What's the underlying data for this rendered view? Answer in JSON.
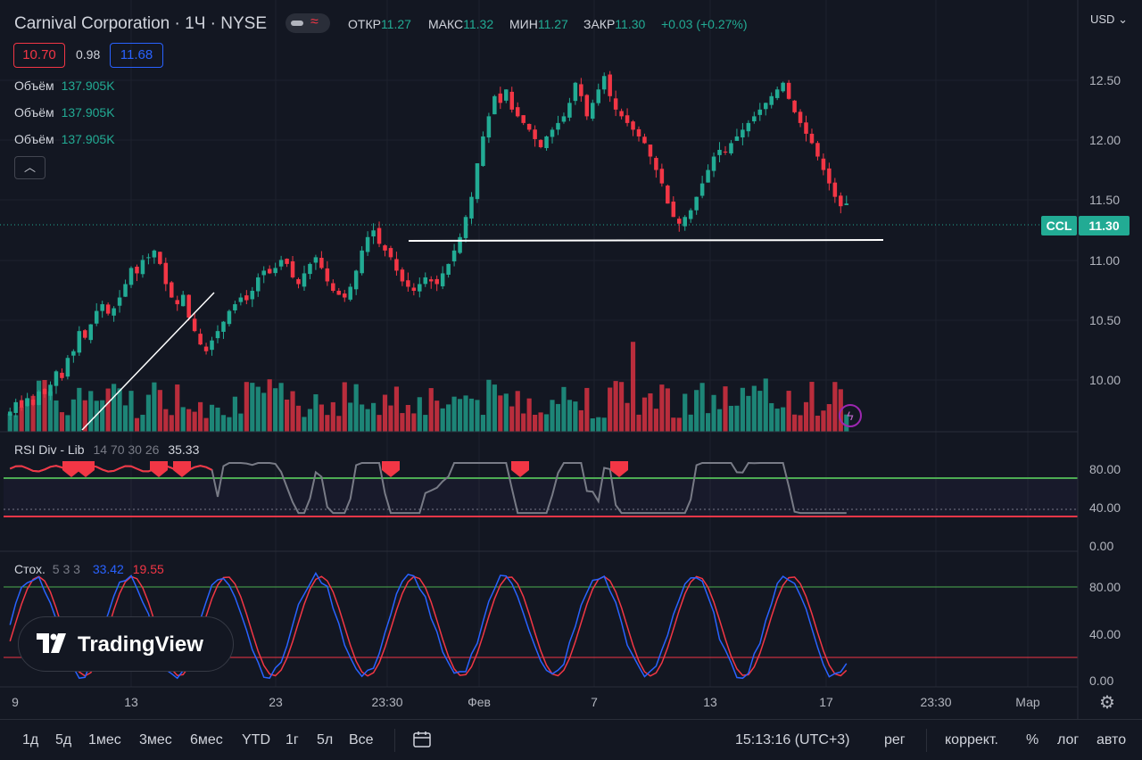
{
  "header": {
    "title": "Carnival Corporation · 1Ч · NYSE",
    "ohlc": [
      {
        "key": "ОТКР",
        "value": "11.27"
      },
      {
        "key": "МАКС",
        "value": "11.32"
      },
      {
        "key": "МИН",
        "value": "11.27"
      },
      {
        "key": "ЗАКР",
        "value": "11.30"
      }
    ],
    "change": "+0.03 (+0.27%)",
    "bid": "10.70",
    "spread": "0.98",
    "ask": "11.68",
    "collapse_icon": "chevron-up-icon"
  },
  "volume_legends": [
    {
      "label": "Объём",
      "value": "137.905K"
    },
    {
      "label": "Объём",
      "value": "137.905K"
    },
    {
      "label": "Объём",
      "value": "137.905K"
    }
  ],
  "currency": "USD",
  "price_axis": {
    "ticks": [
      "12.50",
      "12.00",
      "11.50",
      "11.00",
      "10.50",
      "10.00"
    ],
    "symbol_badge": "CCL",
    "last_price": "11.30"
  },
  "rsi": {
    "title": "RSI Div - Lib",
    "params": "14 70 30 26",
    "value": "35.33",
    "ticks": [
      "80.00",
      "40.00",
      "0.00"
    ]
  },
  "stoch": {
    "title": "Стох.",
    "params": "5 3 3",
    "k_value": "33.42",
    "d_value": "19.55",
    "ticks": [
      "80.00",
      "40.00",
      "0.00"
    ]
  },
  "time_axis": {
    "labels": [
      "9",
      "13",
      "23",
      "23:30",
      "Фев",
      "7",
      "13",
      "17",
      "23:30",
      "Мар"
    ]
  },
  "bottom_bar": {
    "periods": [
      "1д",
      "5д",
      "1мес",
      "3мес",
      "6мес",
      "YTD",
      "1г",
      "5л",
      "Все"
    ],
    "compare_icon": "calendar-range-icon",
    "clock": "15:13:16 (UTC+3)",
    "session": "рег",
    "adjust": "коррект.",
    "percent": "%",
    "log": "лог",
    "auto": "авто"
  },
  "logo": {
    "text": "TradingView"
  },
  "colors": {
    "up": "#22ab94",
    "down": "#f23645",
    "background": "#131722",
    "rsi_line": "#787b86",
    "stoch_k": "#2962ff",
    "stoch_d": "#f23645"
  },
  "chart_data": {
    "type": "candlestick",
    "symbol": "CCL",
    "price_range": [
      9.6,
      12.75
    ],
    "closes": [
      9.75,
      9.82,
      9.78,
      9.85,
      9.8,
      9.9,
      9.88,
      9.95,
      10.05,
      10.0,
      10.15,
      10.2,
      10.35,
      10.3,
      10.4,
      10.5,
      10.55,
      10.48,
      10.52,
      10.6,
      10.7,
      10.82,
      10.78,
      10.88,
      10.9,
      10.95,
      10.85,
      10.7,
      10.6,
      10.55,
      10.62,
      10.45,
      10.35,
      10.25,
      10.2,
      10.28,
      10.35,
      10.42,
      10.5,
      10.55,
      10.6,
      10.58,
      10.65,
      10.75,
      10.8,
      10.78,
      10.82,
      10.88,
      10.85,
      10.75,
      10.7,
      10.78,
      10.85,
      10.9,
      10.82,
      10.72,
      10.65,
      10.62,
      10.6,
      10.68,
      10.8,
      10.95,
      11.05,
      11.1,
      11.0,
      10.95,
      10.9,
      10.8,
      10.72,
      10.68,
      10.65,
      10.7,
      10.75,
      10.72,
      10.7,
      10.78,
      10.85,
      10.95,
      11.05,
      11.2,
      11.35,
      11.6,
      11.8,
      11.95,
      12.1,
      12.05,
      12.15,
      12.0,
      11.95,
      11.9,
      11.85,
      11.78,
      11.72,
      11.8,
      11.85,
      11.9,
      11.95,
      12.05,
      12.2,
      12.1,
      11.95,
      12.05,
      12.15,
      12.25,
      12.1,
      12.0,
      11.95,
      11.9,
      11.85,
      11.8,
      11.75,
      11.65,
      11.55,
      11.45,
      11.3,
      11.2,
      11.15,
      11.2,
      11.25,
      11.35,
      11.45,
      11.55,
      11.65,
      11.7,
      11.68,
      11.75,
      11.8,
      11.85,
      11.9,
      11.95,
      12.0,
      12.05,
      12.1,
      12.15,
      12.2,
      12.08,
      11.98,
      11.9,
      11.82,
      11.75,
      11.65,
      11.55,
      11.45,
      11.35,
      11.28,
      11.3
    ]
  }
}
